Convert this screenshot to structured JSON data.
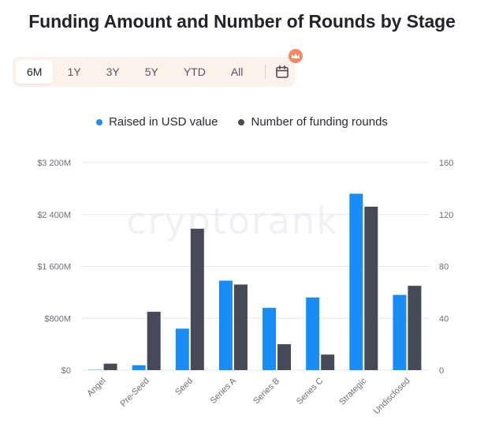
{
  "title": "Funding Amount and Number of Rounds by Stage",
  "range_tabs": [
    "6M",
    "1Y",
    "3Y",
    "5Y",
    "YTD",
    "All"
  ],
  "active_range": "6M",
  "calendar_icon": "calendar-icon",
  "badge_icon": "crown-icon",
  "watermark": "cryptorank",
  "colors": {
    "raised": "#1a8cf5",
    "rounds": "#464957",
    "grid": "#e6e8ec",
    "tick": "#6b6e78"
  },
  "chart_data": {
    "type": "bar",
    "categories": [
      "Angel",
      "Pre-Seed",
      "Seed",
      "Series A",
      "Series B",
      "Series C",
      "Strategic",
      "Undisclosed"
    ],
    "series": [
      {
        "name": "Raised in USD value",
        "axis": "left",
        "values": [
          5,
          75,
          640,
          1380,
          960,
          1120,
          2720,
          1160
        ]
      },
      {
        "name": "Number of funding rounds",
        "axis": "right",
        "values": [
          5,
          45,
          109,
          66,
          20,
          12,
          126,
          65
        ]
      }
    ],
    "y_left": {
      "min": 0,
      "max": 3200,
      "ticks": [
        0,
        800,
        1600,
        2400,
        3200
      ],
      "tick_labels": [
        "$0",
        "$800M",
        "$1 600M",
        "$2 400M",
        "$3 200M"
      ]
    },
    "y_right": {
      "min": 0,
      "max": 160,
      "ticks": [
        0,
        40,
        80,
        120,
        160
      ],
      "tick_labels": [
        "0",
        "40",
        "80",
        "120",
        "160"
      ]
    },
    "grid": true,
    "legend": "top-center"
  }
}
